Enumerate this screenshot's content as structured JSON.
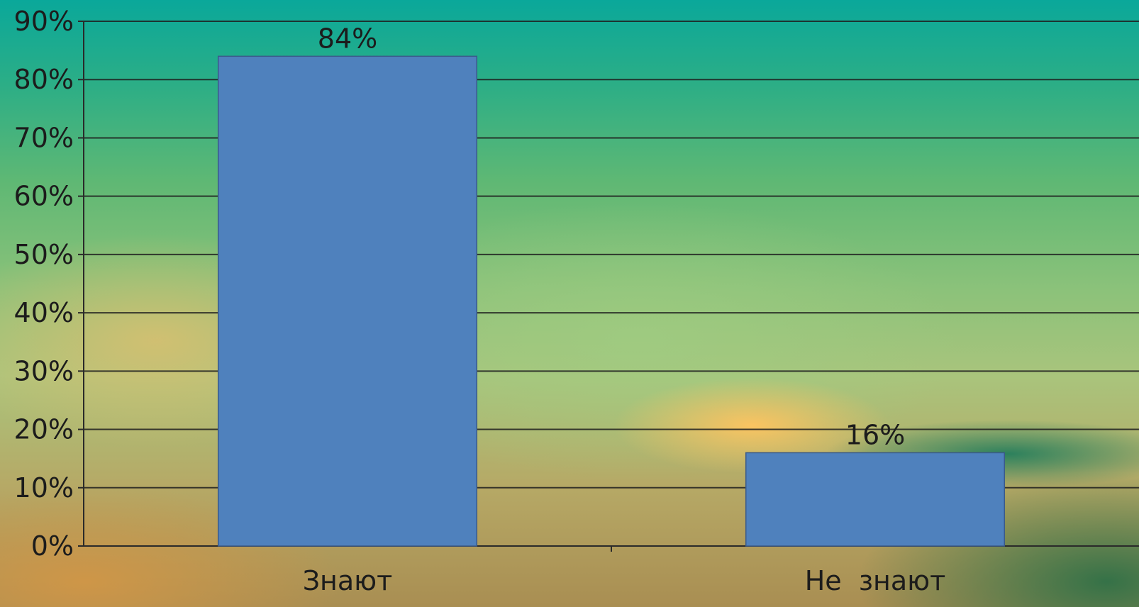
{
  "chart_data": {
    "type": "bar",
    "categories": [
      "Знают",
      "Не  знают"
    ],
    "values": [
      84,
      16
    ],
    "data_labels": [
      "84%",
      "16%"
    ],
    "ylim": [
      0,
      90
    ],
    "yticks": [
      0,
      10,
      20,
      30,
      40,
      50,
      60,
      70,
      80,
      90
    ],
    "ytick_labels": [
      "0%",
      "10%",
      "20%",
      "30%",
      "40%",
      "50%",
      "60%",
      "70%",
      "80%",
      "90%"
    ],
    "grid": true,
    "bar_color": "#4f81bd"
  }
}
